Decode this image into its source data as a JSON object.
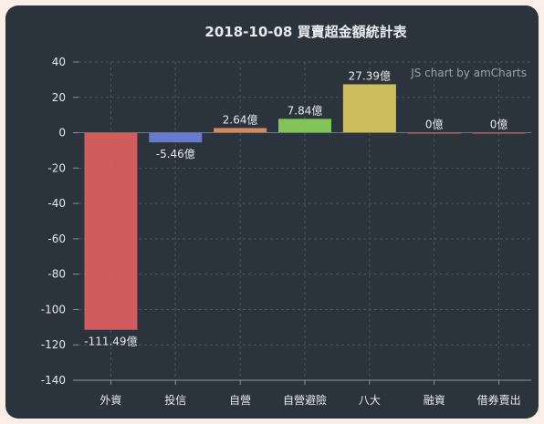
{
  "chart_data": {
    "type": "bar",
    "title": "2018-10-08 買賣超金額統計表",
    "credit": "JS chart by amCharts",
    "categories": [
      "外資",
      "投信",
      "自營",
      "自營避險",
      "八大",
      "融資",
      "借券賣出"
    ],
    "values": [
      -111.49,
      -5.46,
      2.64,
      7.84,
      27.39,
      0,
      0
    ],
    "value_labels": [
      "-111.49億",
      "-5.46億",
      "2.64億",
      "7.84億",
      "27.39億",
      "0億",
      "0億"
    ],
    "bar_colors": [
      "#d86060",
      "#6a7fd6",
      "#dc8f63",
      "#86cc5a",
      "#d6c55e",
      "#d86060",
      "#d86060"
    ],
    "ylim": [
      -140,
      40
    ],
    "yticks": [
      40,
      20,
      0,
      -20,
      -40,
      -60,
      -80,
      -100,
      -120,
      -140
    ],
    "grid": true,
    "xlabel": "",
    "ylabel": ""
  }
}
